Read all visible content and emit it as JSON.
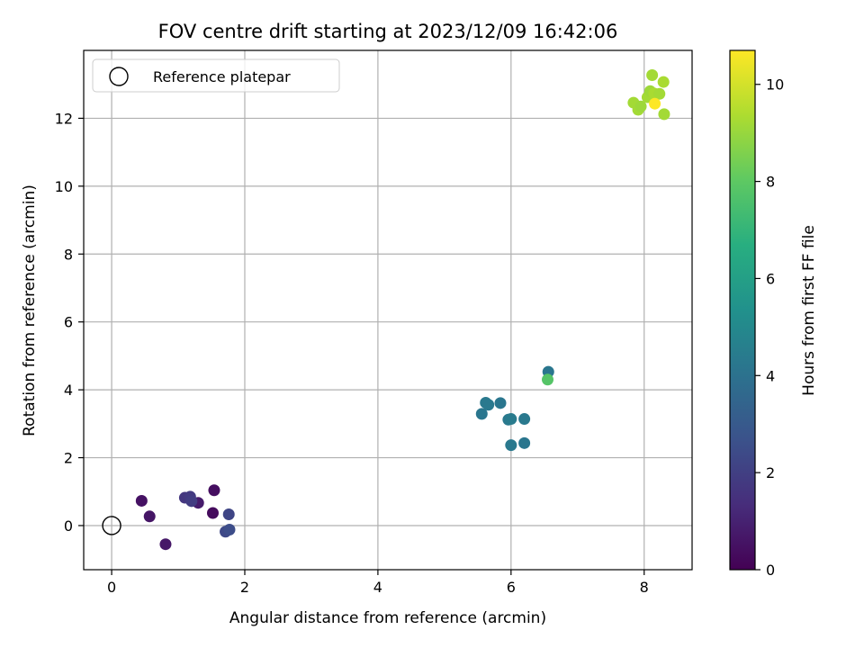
{
  "chart_data": {
    "type": "scatter",
    "title": "FOV centre drift starting at 2023/12/09 16:42:06",
    "xlabel": "Angular distance from reference (arcmin)",
    "ylabel": "Rotation from reference (arcmin)",
    "xlim": [
      -0.42,
      8.72
    ],
    "ylim": [
      -1.3,
      14.0
    ],
    "xticks": [
      0,
      2,
      4,
      6,
      8
    ],
    "yticks": [
      0,
      2,
      4,
      6,
      8,
      10,
      12
    ],
    "grid": true,
    "legend": {
      "placement": "top-left",
      "entries": [
        "Reference platepar"
      ]
    },
    "reference_point": {
      "x": 0,
      "y": 0,
      "label": "Reference platepar"
    },
    "colorbar": {
      "label": "Hours from first FF file",
      "colormap": "viridis",
      "range": [
        0,
        10.7
      ],
      "ticks": [
        0,
        2,
        4,
        6,
        8,
        10
      ]
    },
    "points": [
      {
        "x": 0.45,
        "y": 0.73,
        "c": 0.5
      },
      {
        "x": 0.57,
        "y": 0.27,
        "c": 0.6
      },
      {
        "x": 0.81,
        "y": -0.55,
        "c": 0.7
      },
      {
        "x": 1.3,
        "y": 0.67,
        "c": 0.8
      },
      {
        "x": 1.52,
        "y": 0.37,
        "c": 0.3
      },
      {
        "x": 1.54,
        "y": 1.04,
        "c": 0.4
      },
      {
        "x": 1.1,
        "y": 0.82,
        "c": 1.7
      },
      {
        "x": 1.18,
        "y": 0.85,
        "c": 1.8
      },
      {
        "x": 1.2,
        "y": 0.72,
        "c": 1.9
      },
      {
        "x": 1.76,
        "y": 0.33,
        "c": 2.2
      },
      {
        "x": 1.71,
        "y": -0.18,
        "c": 2.3
      },
      {
        "x": 1.77,
        "y": -0.12,
        "c": 2.5
      },
      {
        "x": 5.56,
        "y": 3.29,
        "c": 4.2
      },
      {
        "x": 5.62,
        "y": 3.62,
        "c": 4.3
      },
      {
        "x": 5.66,
        "y": 3.56,
        "c": 4.3
      },
      {
        "x": 5.84,
        "y": 3.61,
        "c": 4.2
      },
      {
        "x": 5.96,
        "y": 3.12,
        "c": 4.3
      },
      {
        "x": 6.0,
        "y": 3.14,
        "c": 4.4
      },
      {
        "x": 6.0,
        "y": 2.37,
        "c": 4.3
      },
      {
        "x": 6.2,
        "y": 3.14,
        "c": 4.3
      },
      {
        "x": 6.2,
        "y": 2.43,
        "c": 4.2
      },
      {
        "x": 6.56,
        "y": 4.53,
        "c": 4.2
      },
      {
        "x": 6.55,
        "y": 4.3,
        "c": 7.8
      },
      {
        "x": 7.84,
        "y": 12.46,
        "c": 9.2
      },
      {
        "x": 7.91,
        "y": 12.25,
        "c": 9.2
      },
      {
        "x": 7.95,
        "y": 12.35,
        "c": 9.1
      },
      {
        "x": 8.05,
        "y": 12.62,
        "c": 9.2
      },
      {
        "x": 8.09,
        "y": 12.8,
        "c": 9.1
      },
      {
        "x": 8.12,
        "y": 13.27,
        "c": 9.2
      },
      {
        "x": 8.15,
        "y": 12.73,
        "c": 9.3
      },
      {
        "x": 8.23,
        "y": 12.72,
        "c": 9.2
      },
      {
        "x": 8.29,
        "y": 13.07,
        "c": 9.3
      },
      {
        "x": 8.3,
        "y": 12.12,
        "c": 9.2
      },
      {
        "x": 8.16,
        "y": 12.43,
        "c": 10.7
      }
    ]
  }
}
